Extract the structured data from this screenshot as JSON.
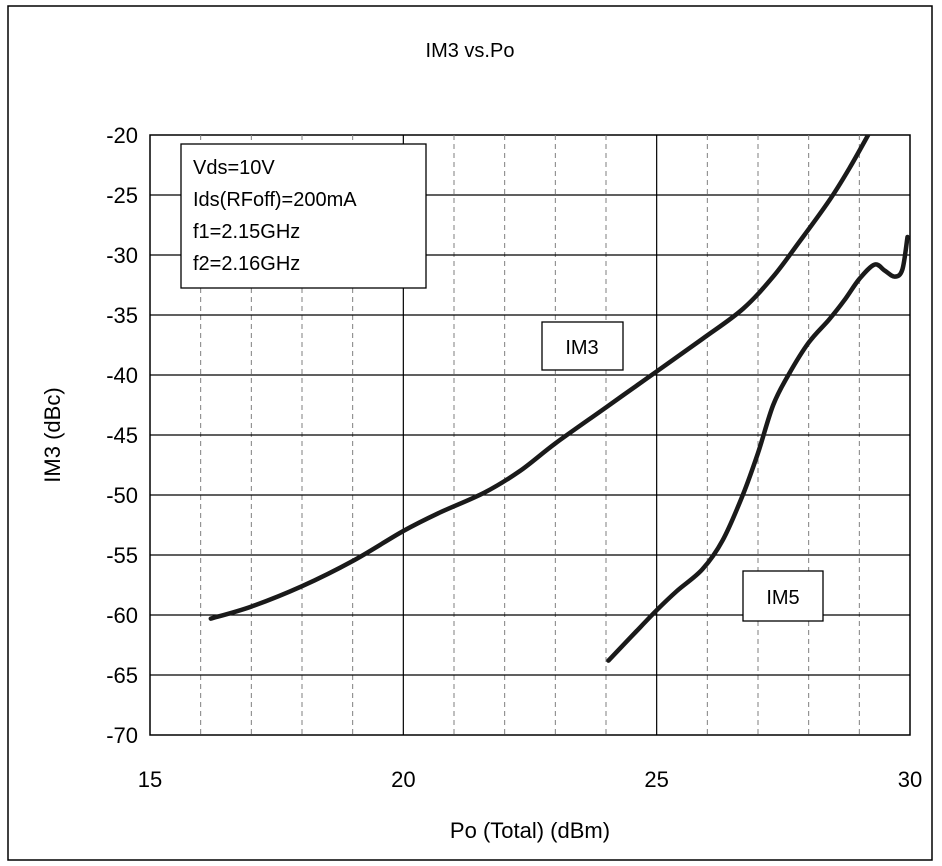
{
  "chart_data": {
    "type": "line",
    "title": "IM3 vs.Po",
    "xlabel": "Po (Total) (dBm)",
    "ylabel": "IM3 (dBc)",
    "xlim": [
      15,
      30
    ],
    "ylim": [
      -70,
      -20
    ],
    "x_ticks": [
      "15",
      "20",
      "25",
      "30"
    ],
    "y_ticks": [
      "-20",
      "-25",
      "-30",
      "-35",
      "-40",
      "-45",
      "-50",
      "-55",
      "-60",
      "-65",
      "-70"
    ],
    "grid": true,
    "conditions": [
      "Vds=10V",
      "Ids(RFoff)=200mA",
      "f1=2.15GHz",
      "f2=2.16GHz"
    ],
    "series": [
      {
        "name": "IM3",
        "x": [
          16.2,
          17.0,
          18.0,
          19.0,
          20.0,
          20.7,
          21.6,
          22.3,
          23.0,
          24.0,
          25.0,
          25.9,
          26.7,
          27.3,
          27.8,
          28.4,
          28.8,
          29.2
        ],
        "y": [
          -60.3,
          -59.3,
          -57.6,
          -55.5,
          -53.0,
          -51.5,
          -49.8,
          -48.0,
          -45.7,
          -42.7,
          -39.7,
          -37.0,
          -34.5,
          -31.8,
          -29.0,
          -25.5,
          -22.8,
          -19.8
        ]
      },
      {
        "name": "IM5",
        "x": [
          24.05,
          24.5,
          25.0,
          25.4,
          25.9,
          26.3,
          26.7,
          27.0,
          27.3,
          27.6,
          28.0,
          28.4,
          28.7,
          29.0,
          29.3,
          29.5,
          29.7,
          29.85,
          29.95
        ],
        "y": [
          -63.8,
          -61.8,
          -59.6,
          -58.0,
          -56.2,
          -53.8,
          -50.0,
          -46.5,
          -42.5,
          -40.0,
          -37.3,
          -35.4,
          -33.8,
          -32.0,
          -30.8,
          -31.3,
          -31.8,
          -31.2,
          -28.5
        ]
      }
    ]
  }
}
